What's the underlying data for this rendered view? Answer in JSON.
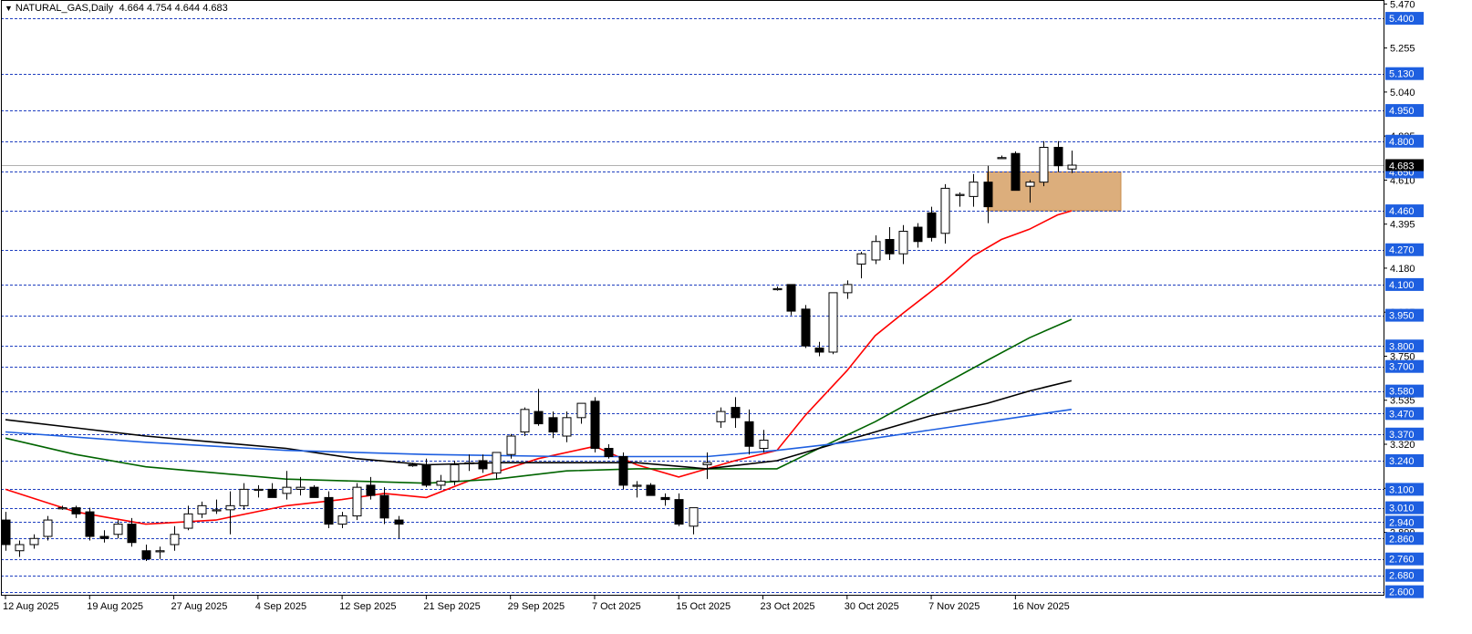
{
  "header": {
    "symbol": "NATURAL_GAS",
    "timeframe": "Daily",
    "open": "4.664",
    "high": "4.754",
    "low": "4.644",
    "close": "4.683"
  },
  "colors": {
    "background": "#ffffff",
    "level_line": "#2040c0",
    "ma_fast": "#ff0000",
    "ma_medium": "#006400",
    "ma_slow": "#000000",
    "ma_long": "#1e5fe0",
    "zone_fill": "#dcae7c",
    "highlight_label": "#1e5fe0"
  },
  "chart_data": {
    "type": "candlestick",
    "ylim": [
      2.585,
      5.485
    ],
    "y_axis_ticks": [
      "5.470",
      "5.255",
      "5.040",
      "4.825",
      "4.610",
      "4.395",
      "4.180",
      "3.965",
      "3.750",
      "3.535",
      "3.320",
      "3.105",
      "2.890"
    ],
    "x_axis_labels": [
      "12 Aug 2025",
      "19 Aug 2025",
      "27 Aug 2025",
      "4 Sep 2025",
      "12 Sep 2025",
      "21 Sep 2025",
      "29 Sep 2025",
      "7 Oct 2025",
      "15 Oct 2025",
      "23 Oct 2025",
      "30 Oct 2025",
      "7 Nov 2025",
      "16 Nov 2025"
    ],
    "highlight_levels": [
      "5.400",
      "5.130",
      "4.950",
      "4.800",
      "4.650",
      "4.460",
      "4.270",
      "4.100",
      "3.950",
      "3.800",
      "3.700",
      "3.580",
      "3.470",
      "3.370",
      "3.240",
      "3.100",
      "3.010",
      "2.940",
      "2.860",
      "2.760",
      "2.680",
      "2.600"
    ],
    "current_price": "4.683",
    "zone": {
      "from": 4.46,
      "to": 4.65
    },
    "candles": [
      [
        2.95,
        2.99,
        2.8,
        2.83
      ],
      [
        2.8,
        2.85,
        2.77,
        2.83
      ],
      [
        2.83,
        2.88,
        2.81,
        2.86
      ],
      [
        2.87,
        2.97,
        2.85,
        2.95
      ],
      [
        3.01,
        3.02,
        3.0,
        3.01
      ],
      [
        3.01,
        3.02,
        2.96,
        2.98
      ],
      [
        2.99,
        3.01,
        2.85,
        2.87
      ],
      [
        2.87,
        2.9,
        2.84,
        2.86
      ],
      [
        2.88,
        2.95,
        2.86,
        2.93
      ],
      [
        2.93,
        2.96,
        2.82,
        2.84
      ],
      [
        2.8,
        2.83,
        2.75,
        2.76
      ],
      [
        2.8,
        2.82,
        2.76,
        2.8
      ],
      [
        2.83,
        2.92,
        2.8,
        2.88
      ],
      [
        2.91,
        3.02,
        2.9,
        2.98
      ],
      [
        2.98,
        3.04,
        2.96,
        3.02
      ],
      [
        3.0,
        3.05,
        2.98,
        3.0
      ],
      [
        3.0,
        3.09,
        2.88,
        3.02
      ],
      [
        3.02,
        3.13,
        3.0,
        3.1
      ],
      [
        3.1,
        3.12,
        3.06,
        3.1
      ],
      [
        3.1,
        3.13,
        3.06,
        3.06
      ],
      [
        3.08,
        3.19,
        3.05,
        3.11
      ],
      [
        3.1,
        3.16,
        3.07,
        3.11
      ],
      [
        3.11,
        3.12,
        3.06,
        3.06
      ],
      [
        3.06,
        3.09,
        2.91,
        2.93
      ],
      [
        2.93,
        2.99,
        2.91,
        2.97
      ],
      [
        2.97,
        3.13,
        2.95,
        3.11
      ],
      [
        3.12,
        3.16,
        3.05,
        3.07
      ],
      [
        3.07,
        3.11,
        2.93,
        2.96
      ],
      [
        2.95,
        2.97,
        2.86,
        2.93
      ],
      [
        3.22,
        3.23,
        3.21,
        3.22
      ],
      [
        3.22,
        3.25,
        3.11,
        3.12
      ],
      [
        3.12,
        3.17,
        3.1,
        3.14
      ],
      [
        3.14,
        3.24,
        3.12,
        3.22
      ],
      [
        3.23,
        3.27,
        3.19,
        3.23
      ],
      [
        3.24,
        3.27,
        3.18,
        3.2
      ],
      [
        3.18,
        3.27,
        3.15,
        3.28
      ],
      [
        3.27,
        3.37,
        3.25,
        3.36
      ],
      [
        3.38,
        3.5,
        3.36,
        3.49
      ],
      [
        3.48,
        3.59,
        3.41,
        3.42
      ],
      [
        3.45,
        3.48,
        3.35,
        3.38
      ],
      [
        3.36,
        3.48,
        3.33,
        3.45
      ],
      [
        3.45,
        3.52,
        3.42,
        3.52
      ],
      [
        3.53,
        3.55,
        3.28,
        3.3
      ],
      [
        3.3,
        3.32,
        3.25,
        3.26
      ],
      [
        3.26,
        3.28,
        3.1,
        3.12
      ],
      [
        3.12,
        3.14,
        3.06,
        3.12
      ],
      [
        3.12,
        3.13,
        3.07,
        3.07
      ],
      [
        3.06,
        3.08,
        3.02,
        3.05
      ],
      [
        3.05,
        3.08,
        2.92,
        2.93
      ],
      [
        2.92,
        3.01,
        2.88,
        3.01
      ],
      [
        3.22,
        3.28,
        3.15,
        3.23
      ],
      [
        3.43,
        3.5,
        3.4,
        3.48
      ],
      [
        3.5,
        3.55,
        3.4,
        3.45
      ],
      [
        3.43,
        3.49,
        3.27,
        3.31
      ],
      [
        3.3,
        3.39,
        3.28,
        3.34
      ],
      [
        4.08,
        4.09,
        4.07,
        4.08
      ],
      [
        4.1,
        4.1,
        3.95,
        3.97
      ],
      [
        3.98,
        4.0,
        3.79,
        3.8
      ],
      [
        3.79,
        3.82,
        3.75,
        3.77
      ],
      [
        3.77,
        4.06,
        3.76,
        4.06
      ],
      [
        4.06,
        4.12,
        4.03,
        4.1
      ],
      [
        4.2,
        4.26,
        4.13,
        4.25
      ],
      [
        4.22,
        4.34,
        4.2,
        4.31
      ],
      [
        4.32,
        4.38,
        4.22,
        4.25
      ],
      [
        4.25,
        4.39,
        4.2,
        4.36
      ],
      [
        4.38,
        4.4,
        4.28,
        4.31
      ],
      [
        4.45,
        4.48,
        4.31,
        4.33
      ],
      [
        4.35,
        4.59,
        4.3,
        4.57
      ],
      [
        4.54,
        4.55,
        4.48,
        4.54
      ],
      [
        4.53,
        4.64,
        4.48,
        4.6
      ],
      [
        4.6,
        4.68,
        4.4,
        4.48
      ],
      [
        4.72,
        4.73,
        4.72,
        4.72
      ],
      [
        4.74,
        4.75,
        4.56,
        4.56
      ],
      [
        4.58,
        4.61,
        4.5,
        4.6
      ],
      [
        4.6,
        4.8,
        4.58,
        4.77
      ],
      [
        4.77,
        4.8,
        4.65,
        4.68
      ],
      [
        4.664,
        4.754,
        4.644,
        4.683
      ]
    ],
    "moving_averages": [
      {
        "color": "ma_fast",
        "values": [
          [
            0,
            3.1
          ],
          [
            5,
            2.99
          ],
          [
            10,
            2.93
          ],
          [
            15,
            2.95
          ],
          [
            20,
            3.02
          ],
          [
            24,
            3.05
          ],
          [
            27,
            3.08
          ],
          [
            30,
            3.06
          ],
          [
            33,
            3.14
          ],
          [
            38,
            3.25
          ],
          [
            42,
            3.31
          ],
          [
            45,
            3.22
          ],
          [
            48,
            3.16
          ],
          [
            52,
            3.24
          ],
          [
            55,
            3.29
          ],
          [
            57,
            3.46
          ],
          [
            60,
            3.68
          ],
          [
            62,
            3.85
          ],
          [
            64,
            3.96
          ],
          [
            67,
            4.12
          ],
          [
            69,
            4.24
          ],
          [
            71,
            4.32
          ],
          [
            73,
            4.37
          ],
          [
            75,
            4.44
          ],
          [
            76,
            4.46
          ]
        ]
      },
      {
        "color": "ma_medium",
        "values": [
          [
            0,
            3.35
          ],
          [
            5,
            3.27
          ],
          [
            10,
            3.21
          ],
          [
            15,
            3.18
          ],
          [
            20,
            3.15
          ],
          [
            25,
            3.14
          ],
          [
            30,
            3.13
          ],
          [
            35,
            3.15
          ],
          [
            40,
            3.19
          ],
          [
            45,
            3.2
          ],
          [
            50,
            3.2
          ],
          [
            55,
            3.2
          ],
          [
            58,
            3.3
          ],
          [
            62,
            3.43
          ],
          [
            66,
            3.58
          ],
          [
            70,
            3.73
          ],
          [
            73,
            3.84
          ],
          [
            76,
            3.93
          ]
        ]
      },
      {
        "color": "ma_slow",
        "values": [
          [
            0,
            3.44
          ],
          [
            5,
            3.4
          ],
          [
            10,
            3.36
          ],
          [
            15,
            3.33
          ],
          [
            20,
            3.3
          ],
          [
            25,
            3.25
          ],
          [
            30,
            3.22
          ],
          [
            35,
            3.23
          ],
          [
            40,
            3.23
          ],
          [
            45,
            3.23
          ],
          [
            50,
            3.2
          ],
          [
            55,
            3.24
          ],
          [
            58,
            3.3
          ],
          [
            62,
            3.38
          ],
          [
            66,
            3.46
          ],
          [
            70,
            3.52
          ],
          [
            73,
            3.58
          ],
          [
            76,
            3.63
          ]
        ]
      },
      {
        "color": "ma_long",
        "values": [
          [
            0,
            3.38
          ],
          [
            10,
            3.33
          ],
          [
            20,
            3.29
          ],
          [
            30,
            3.27
          ],
          [
            40,
            3.26
          ],
          [
            50,
            3.26
          ],
          [
            55,
            3.29
          ],
          [
            60,
            3.33
          ],
          [
            65,
            3.38
          ],
          [
            70,
            3.43
          ],
          [
            73,
            3.46
          ],
          [
            76,
            3.49
          ]
        ]
      }
    ]
  }
}
